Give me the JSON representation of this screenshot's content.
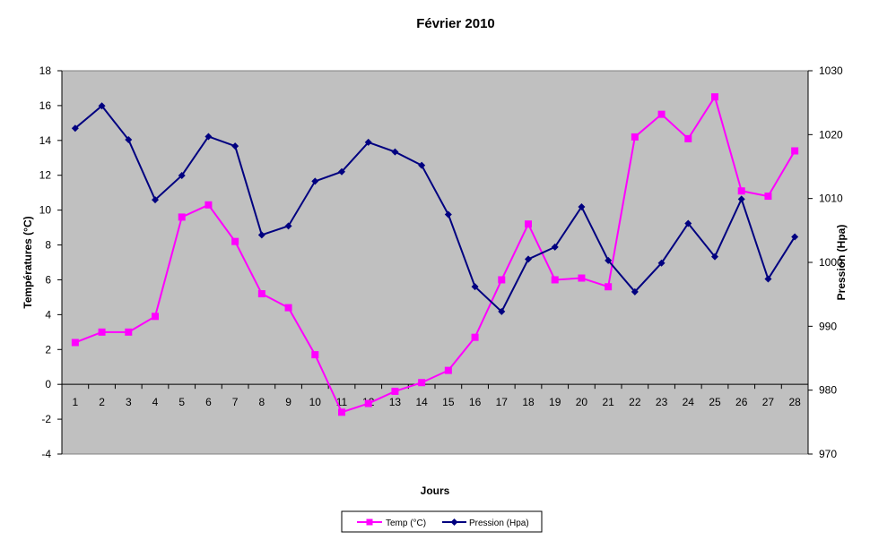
{
  "chart_data": {
    "type": "line",
    "title": "Février 2010",
    "xlabel": "Jours",
    "ylabel_left": "Températures  (°C)",
    "ylabel_right": "Pression (Hpa)",
    "x": [
      1,
      2,
      3,
      4,
      5,
      6,
      7,
      8,
      9,
      10,
      11,
      12,
      13,
      14,
      15,
      16,
      17,
      18,
      19,
      20,
      21,
      22,
      23,
      24,
      25,
      26,
      27,
      28
    ],
    "ylim_left": [
      -4,
      18
    ],
    "yticks_left": [
      -4,
      -2,
      0,
      2,
      4,
      6,
      8,
      10,
      12,
      14,
      16,
      18
    ],
    "ylim_right": [
      970,
      1030
    ],
    "yticks_right": [
      970,
      980,
      990,
      1000,
      1010,
      1020,
      1030
    ],
    "grid": false,
    "legend": "bottom",
    "series": [
      {
        "name": "Temp (°C)",
        "axis": "left",
        "color": "#ff00ff",
        "marker": "square",
        "values": [
          2.4,
          3.0,
          3.0,
          3.9,
          9.6,
          10.3,
          8.2,
          5.2,
          4.4,
          1.7,
          -1.6,
          -1.1,
          -0.4,
          0.1,
          0.8,
          2.7,
          6.0,
          9.2,
          6.0,
          6.1,
          5.6,
          14.2,
          15.5,
          14.1,
          16.5,
          11.1,
          10.8,
          13.4
        ]
      },
      {
        "name": "Pression (Hpa)",
        "axis": "right",
        "color": "#000080",
        "marker": "diamond",
        "values": [
          1021,
          1024.5,
          1019.2,
          1009.8,
          1013.6,
          1019.7,
          1018.2,
          1004.3,
          1005.7,
          1012.7,
          1014.2,
          1018.8,
          1017.3,
          1015.2,
          1007.5,
          996.2,
          992.3,
          1000.5,
          1002.4,
          1008.7,
          1000.3,
          995.4,
          999.9,
          1006.1,
          1000.9,
          1009.9,
          997.4,
          1004
        ]
      }
    ]
  }
}
